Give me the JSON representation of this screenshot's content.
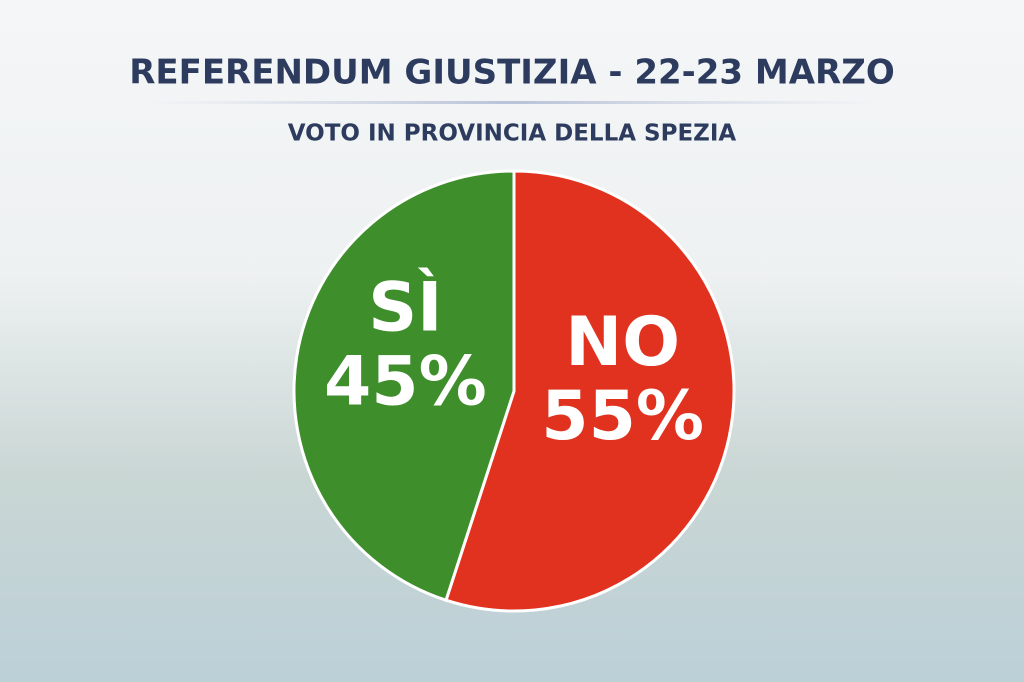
{
  "chart_data": {
    "type": "pie",
    "title": "REFERENDUM GIUSTIZIA - 22-23 MARZO",
    "subtitle": "VOTO IN PROVINCIA DELLA SPEZIA",
    "categories": [
      "NO",
      "SÌ"
    ],
    "values": [
      55,
      45
    ],
    "value_labels": [
      "55%",
      "45%"
    ],
    "colors": [
      "#e1321f",
      "#3e8e2c"
    ]
  }
}
